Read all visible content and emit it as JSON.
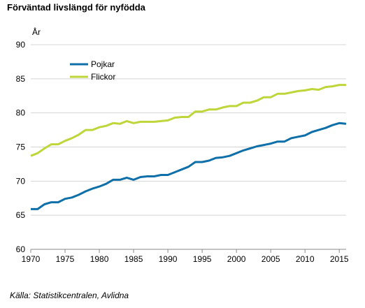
{
  "chart_title": "Förväntad livslängd för nyfödda",
  "source": "Källa: Statistikcentralen, Avlidna",
  "chart_data": {
    "type": "line",
    "title": "Förväntad livslängd för nyfödda",
    "ylabel": "År",
    "xlabel": "",
    "xlim": [
      1970,
      2016
    ],
    "ylim": [
      60,
      90
    ],
    "x_ticks": [
      1970,
      1975,
      1980,
      1985,
      1990,
      1995,
      2000,
      2005,
      2010,
      2015
    ],
    "y_ticks": [
      60,
      65,
      70,
      75,
      80,
      85,
      90
    ],
    "grid": true,
    "legend_position": "top-left",
    "x": [
      1970,
      1971,
      1972,
      1973,
      1974,
      1975,
      1976,
      1977,
      1978,
      1979,
      1980,
      1981,
      1982,
      1983,
      1984,
      1985,
      1986,
      1987,
      1988,
      1989,
      1990,
      1991,
      1992,
      1993,
      1994,
      1995,
      1996,
      1997,
      1998,
      1999,
      2000,
      2001,
      2002,
      2003,
      2004,
      2005,
      2006,
      2007,
      2008,
      2009,
      2010,
      2011,
      2012,
      2013,
      2014,
      2015,
      2016
    ],
    "series": [
      {
        "name": "Pojkar",
        "color": "#0f6fa8",
        "values": [
          65.9,
          65.9,
          66.6,
          66.9,
          66.9,
          67.4,
          67.6,
          68.0,
          68.5,
          68.9,
          69.2,
          69.6,
          70.2,
          70.2,
          70.5,
          70.2,
          70.6,
          70.7,
          70.7,
          70.9,
          70.9,
          71.3,
          71.7,
          72.1,
          72.8,
          72.8,
          73.0,
          73.4,
          73.5,
          73.7,
          74.1,
          74.5,
          74.8,
          75.1,
          75.3,
          75.5,
          75.8,
          75.8,
          76.3,
          76.5,
          76.7,
          77.2,
          77.5,
          77.8,
          78.2,
          78.5,
          78.4
        ]
      },
      {
        "name": "Flickor",
        "color": "#bed63a",
        "values": [
          73.7,
          74.1,
          74.8,
          75.4,
          75.4,
          75.9,
          76.3,
          76.8,
          77.5,
          77.5,
          77.9,
          78.1,
          78.5,
          78.4,
          78.8,
          78.5,
          78.7,
          78.7,
          78.7,
          78.8,
          78.9,
          79.3,
          79.4,
          79.4,
          80.2,
          80.2,
          80.5,
          80.5,
          80.8,
          81.0,
          81.0,
          81.5,
          81.5,
          81.8,
          82.3,
          82.3,
          82.8,
          82.8,
          83.0,
          83.2,
          83.3,
          83.5,
          83.4,
          83.8,
          83.9,
          84.1,
          84.1
        ]
      }
    ]
  }
}
